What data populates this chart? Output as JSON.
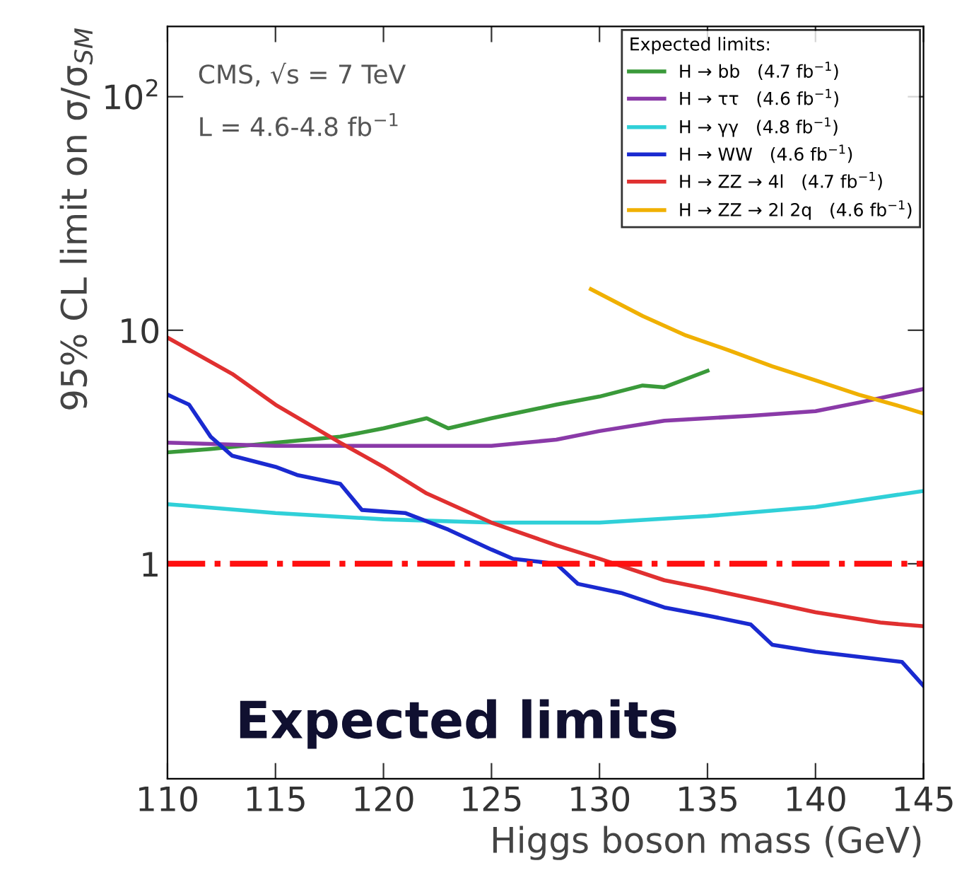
{
  "chart_data": {
    "type": "line",
    "xlabel": "Higgs boson mass (GeV)",
    "ylabel": "95% CL limit on σ/σ$_{SM}$",
    "log": "y",
    "xlim": [
      110,
      145
    ],
    "xticks": [
      110,
      115,
      120,
      125,
      130,
      135,
      140,
      145
    ],
    "ylim": [
      0.12,
      200
    ],
    "yticks": [
      1,
      10,
      {
        "value": 100,
        "label": "10$^{2}$"
      }
    ],
    "legend": "top right",
    "legend_title": "Expected limits:",
    "grid": false,
    "marker": "none",
    "series": [
      {
        "name": "H → bb   (4.7 fb$^{−1}$)",
        "color": "#3a9a3a",
        "x": [
          110,
          112,
          115,
          118,
          120,
          122,
          123,
          125,
          128,
          130,
          132,
          133,
          135
        ],
        "values": [
          3.0,
          3.1,
          3.3,
          3.5,
          3.8,
          4.2,
          3.8,
          4.2,
          4.8,
          5.2,
          5.8,
          5.7,
          6.7
        ]
      },
      {
        "name": "H → ττ   (4.6 fb$^{−1}$)",
        "color": "#8a3aa8",
        "x": [
          110,
          115,
          120,
          125,
          128,
          130,
          133,
          137,
          140,
          142,
          145
        ],
        "values": [
          3.3,
          3.2,
          3.2,
          3.2,
          3.4,
          3.7,
          4.1,
          4.3,
          4.5,
          4.9,
          5.6
        ]
      },
      {
        "name": "H → γγ   (4.8 fb$^{−1}$)",
        "color": "#30d0d8",
        "x": [
          110,
          115,
          120,
          125,
          130,
          135,
          140,
          145
        ],
        "values": [
          1.8,
          1.65,
          1.55,
          1.5,
          1.5,
          1.6,
          1.75,
          2.05
        ]
      },
      {
        "name": "H → WW   (4.6 fb$^{−1}$)",
        "color": "#1a2ad0",
        "x": [
          110,
          111,
          112,
          113,
          115,
          116,
          118,
          119,
          121,
          123,
          125,
          126,
          128,
          129,
          131,
          133,
          135,
          137,
          138,
          140,
          144,
          145
        ],
        "values": [
          5.3,
          4.8,
          3.5,
          2.9,
          2.6,
          2.4,
          2.2,
          1.7,
          1.65,
          1.4,
          1.15,
          1.05,
          1.0,
          0.82,
          0.75,
          0.65,
          0.6,
          0.55,
          0.45,
          0.42,
          0.38,
          0.3
        ]
      },
      {
        "name": "H → ZZ → 4l   (4.7 fb$^{−1}$)",
        "color": "#e03030",
        "x": [
          110,
          113,
          115,
          118,
          120,
          122,
          125,
          128,
          130,
          133,
          135,
          138,
          140,
          143,
          145
        ],
        "values": [
          9.3,
          6.5,
          4.8,
          3.3,
          2.6,
          2.0,
          1.5,
          1.2,
          1.05,
          0.85,
          0.78,
          0.68,
          0.62,
          0.56,
          0.54
        ]
      },
      {
        "name": "H → ZZ → 2l 2q   (4.6 fb$^{−1}$)",
        "color": "#f0b000",
        "x": [
          129.6,
          132,
          134,
          136,
          138,
          140,
          142,
          144,
          145
        ],
        "values": [
          15,
          11.5,
          9.5,
          8.2,
          7.0,
          6.1,
          5.3,
          4.7,
          4.4
        ]
      }
    ],
    "ref_lines": [
      {
        "axis": "y",
        "value": 1,
        "color": "#ff1010",
        "line_style": "dashdot"
      }
    ],
    "annotations": [
      "CMS, √s = 7 TeV",
      "L = 4.6-4.8 fb$^{−1}$",
      "Expected limits"
    ]
  }
}
